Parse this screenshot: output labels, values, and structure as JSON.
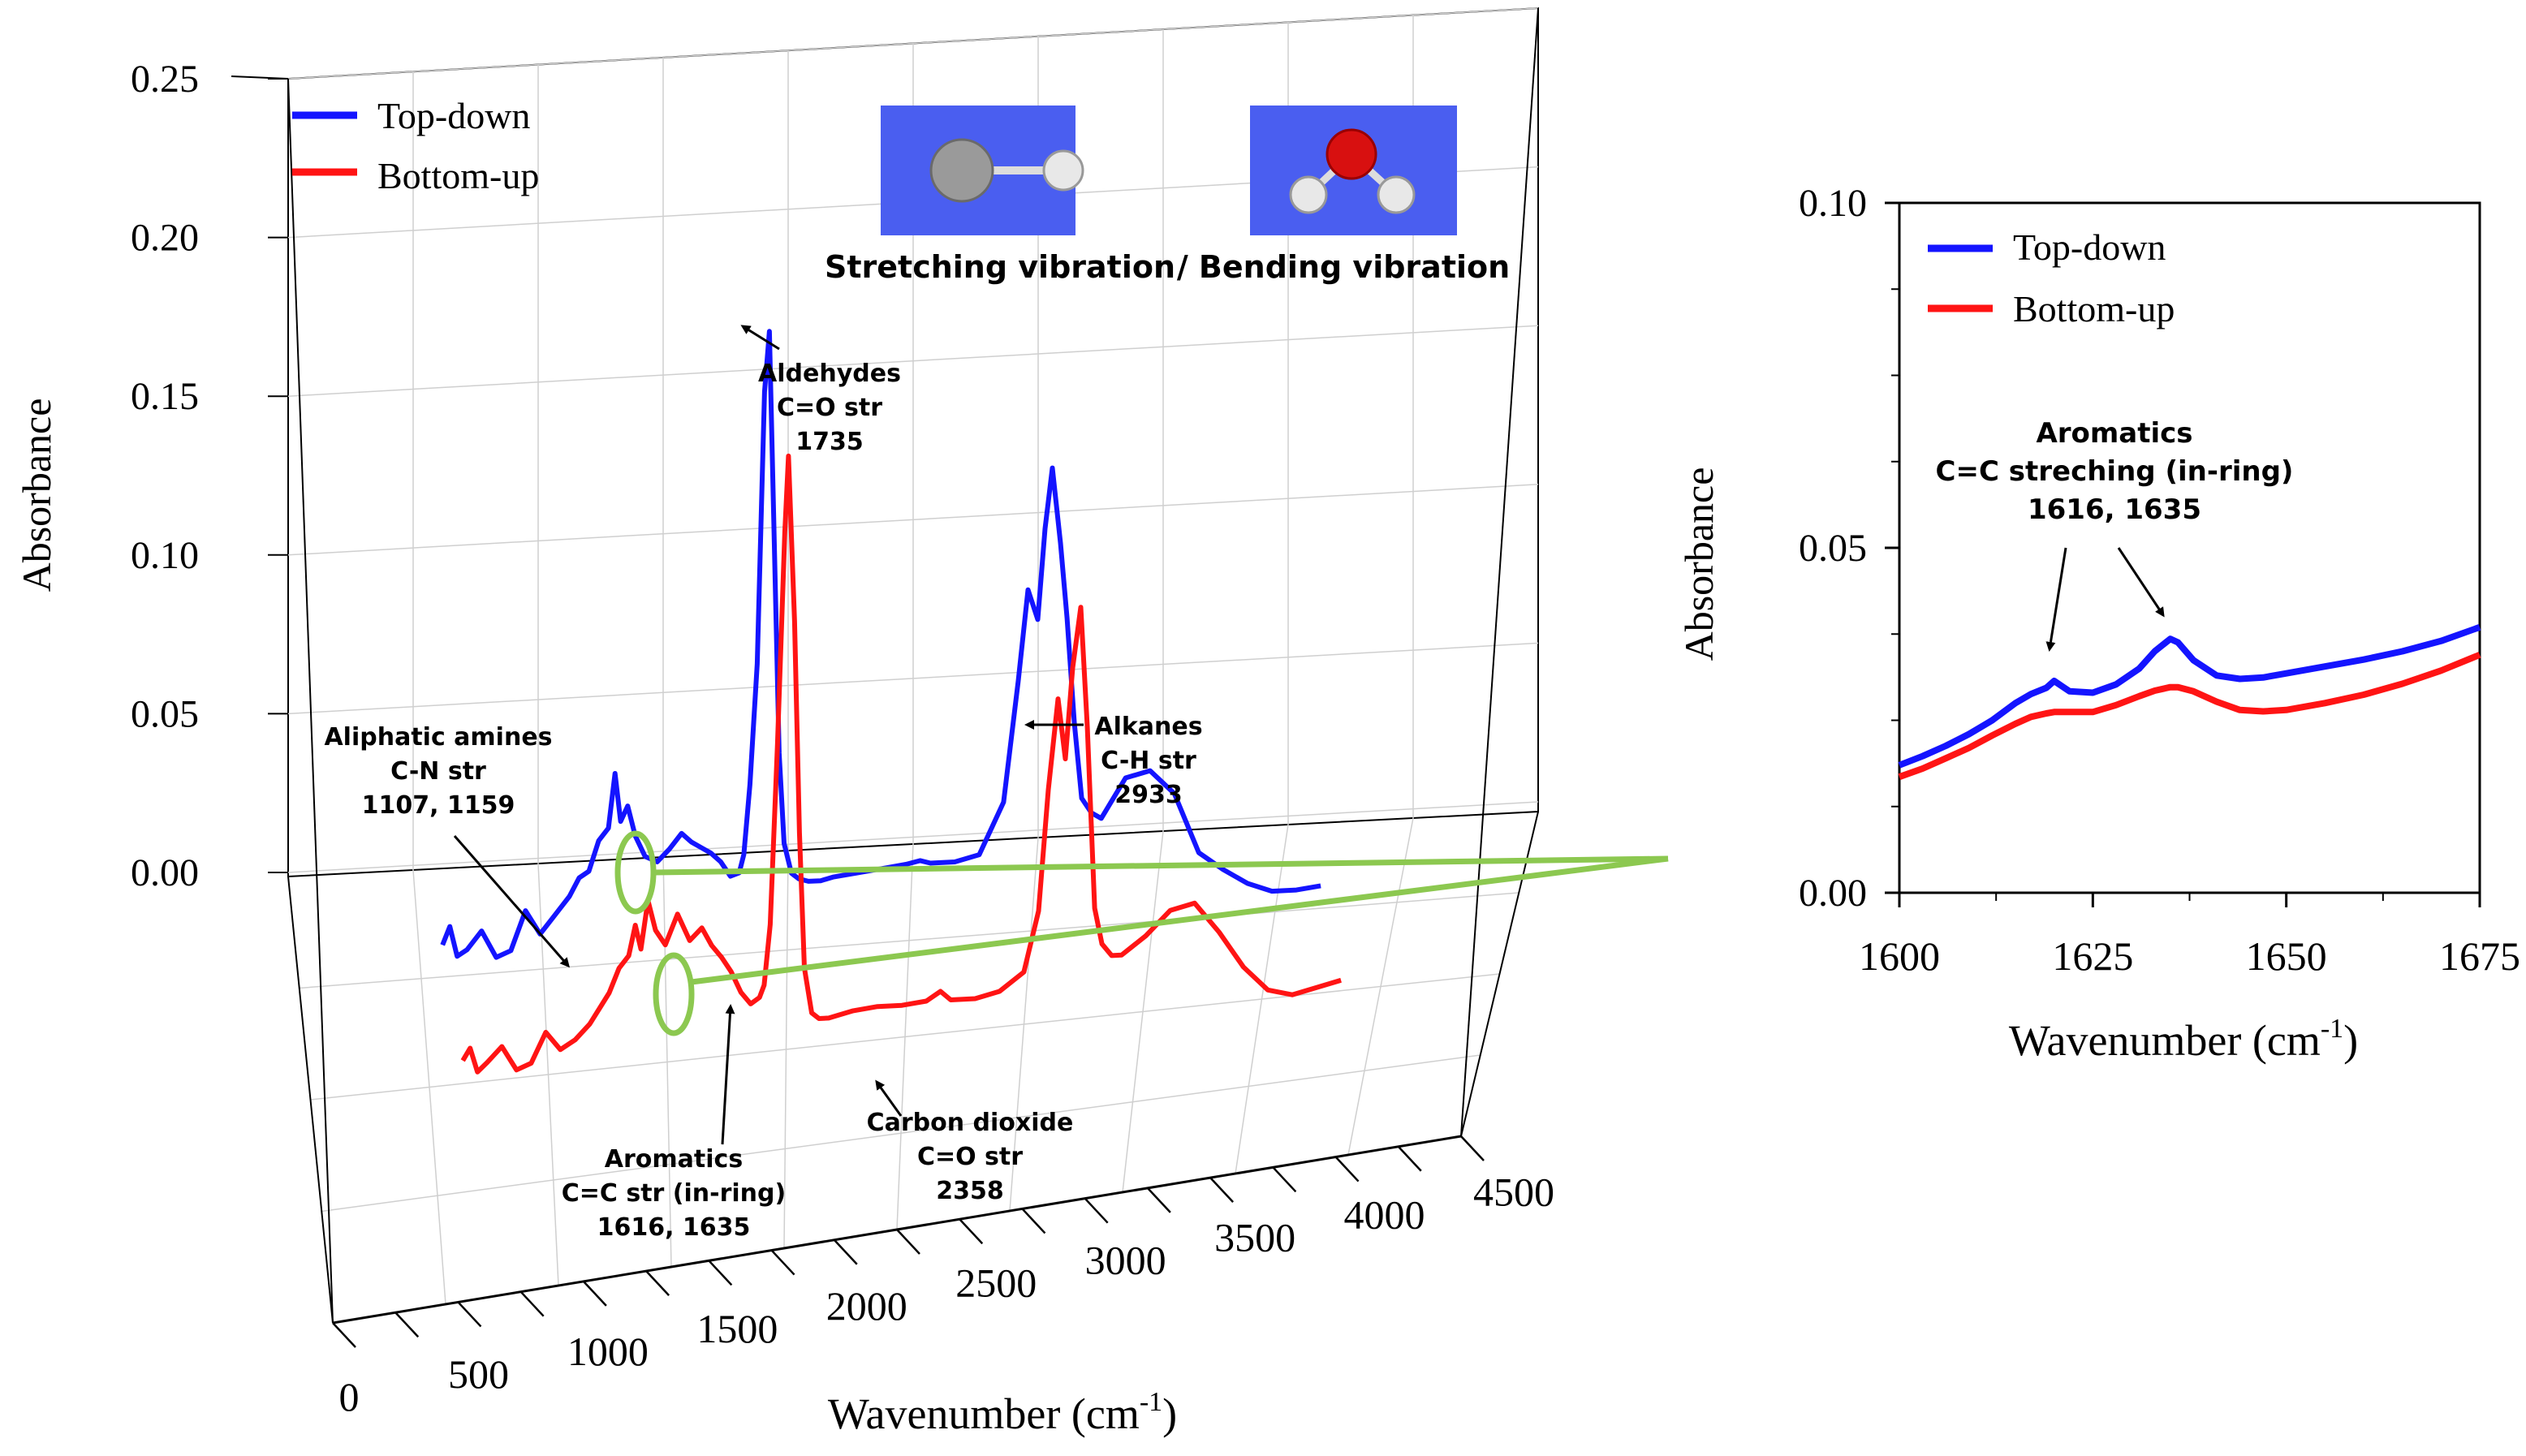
{
  "colors": {
    "top_down": "#1414ff",
    "bottom_up": "#ff1414",
    "zoom_guide": "#8cc850",
    "inset_bg": "#4a5ef0",
    "grid": "#c8c8c8",
    "axis": "#000000"
  },
  "inset_labels": {
    "stretching": "Stretching vibration",
    "bending": "/ Bending vibration"
  },
  "chart_data": [
    {
      "type": "line",
      "projection": "3d-waterfall",
      "xlabel": "Wavenumber (cm",
      "xlabel_sup": "-1",
      "xlabel_close": ")",
      "ylabel": "Absorbance",
      "xlim": [
        0,
        4500
      ],
      "ylim": [
        0.0,
        0.25
      ],
      "xticks": [
        "0",
        "500",
        "1000",
        "1500",
        "2000",
        "2500",
        "3000",
        "3500",
        "4000",
        "4500"
      ],
      "yticks": [
        "0.00",
        "0.05",
        "0.10",
        "0.15",
        "0.20",
        "0.25"
      ],
      "grid": true,
      "legend_position": "top-left",
      "series": [
        {
          "name": "Top-down",
          "color": "#1414ff",
          "x": [
            400,
            430,
            460,
            500,
            560,
            620,
            680,
            740,
            800,
            860,
            920,
            960,
            1000,
            1040,
            1080,
            1107,
            1130,
            1159,
            1190,
            1230,
            1280,
            1330,
            1380,
            1420,
            1460,
            1500,
            1540,
            1580,
            1616,
            1635,
            1660,
            1690,
            1720,
            1740,
            1760,
            1780,
            1800,
            1830,
            1860,
            1900,
            1950,
            2000,
            2100,
            2200,
            2300,
            2358,
            2400,
            2500,
            2600,
            2700,
            2760,
            2800,
            2840,
            2870,
            2900,
            2933,
            2960,
            2990,
            3020,
            3060,
            3100,
            3200,
            3300,
            3400,
            3500,
            3600,
            3700,
            3800,
            3900,
            4000
          ],
          "y": [
            0.012,
            0.018,
            0.008,
            0.01,
            0.016,
            0.007,
            0.009,
            0.022,
            0.014,
            0.02,
            0.026,
            0.032,
            0.034,
            0.044,
            0.048,
            0.066,
            0.05,
            0.055,
            0.045,
            0.038,
            0.036,
            0.04,
            0.045,
            0.042,
            0.04,
            0.038,
            0.035,
            0.03,
            0.031,
            0.037,
            0.06,
            0.1,
            0.19,
            0.21,
            0.14,
            0.07,
            0.04,
            0.03,
            0.028,
            0.027,
            0.027,
            0.028,
            0.029,
            0.03,
            0.031,
            0.032,
            0.031,
            0.031,
            0.033,
            0.05,
            0.09,
            0.12,
            0.11,
            0.14,
            0.16,
            0.135,
            0.11,
            0.075,
            0.05,
            0.045,
            0.043,
            0.056,
            0.058,
            0.05,
            0.03,
            0.024,
            0.019,
            0.016,
            0.016,
            0.017
          ]
        },
        {
          "name": "Bottom-up",
          "color": "#ff1414",
          "x": [
            400,
            430,
            460,
            500,
            560,
            620,
            680,
            740,
            800,
            860,
            920,
            960,
            1000,
            1040,
            1080,
            1107,
            1130,
            1159,
            1190,
            1230,
            1280,
            1330,
            1380,
            1420,
            1460,
            1500,
            1540,
            1580,
            1616,
            1635,
            1660,
            1690,
            1720,
            1735,
            1760,
            1780,
            1800,
            1830,
            1860,
            1900,
            1950,
            2000,
            2100,
            2200,
            2300,
            2358,
            2400,
            2500,
            2600,
            2700,
            2760,
            2800,
            2840,
            2870,
            2900,
            2933,
            2960,
            2990,
            3020,
            3060,
            3100,
            3200,
            3300,
            3400,
            3500,
            3600,
            3700,
            3800,
            3900,
            4000
          ],
          "y": [
            0.01,
            0.014,
            0.006,
            0.009,
            0.014,
            0.006,
            0.008,
            0.018,
            0.012,
            0.015,
            0.02,
            0.025,
            0.03,
            0.038,
            0.042,
            0.052,
            0.044,
            0.06,
            0.05,
            0.045,
            0.055,
            0.046,
            0.05,
            0.044,
            0.04,
            0.035,
            0.028,
            0.024,
            0.026,
            0.03,
            0.05,
            0.11,
            0.18,
            0.205,
            0.15,
            0.08,
            0.035,
            0.02,
            0.018,
            0.018,
            0.019,
            0.02,
            0.021,
            0.021,
            0.022,
            0.025,
            0.022,
            0.022,
            0.024,
            0.03,
            0.05,
            0.09,
            0.12,
            0.1,
            0.13,
            0.15,
            0.11,
            0.05,
            0.038,
            0.034,
            0.034,
            0.04,
            0.048,
            0.05,
            0.04,
            0.028,
            0.02,
            0.018,
            0.02,
            0.022
          ]
        }
      ],
      "annotations": [
        {
          "key": "aldehydes",
          "lines": [
            "Aldehydes",
            "C=O str",
            "1735"
          ]
        },
        {
          "key": "alkanes",
          "lines": [
            "Alkanes",
            "C-H str",
            "2933"
          ]
        },
        {
          "key": "amines",
          "lines": [
            "Aliphatic amines",
            "C-N str",
            "1107, 1159"
          ]
        },
        {
          "key": "aromatics",
          "lines": [
            "Aromatics",
            "C=C str (in-ring)",
            "1616, 1635"
          ]
        },
        {
          "key": "co2",
          "lines": [
            "Carbon dioxide",
            "C=O str",
            "2358"
          ]
        }
      ]
    },
    {
      "type": "line",
      "xlabel": "Wavenumber (cm",
      "xlabel_sup": "-1",
      "xlabel_close": ")",
      "ylabel": "Absorbance",
      "xlim": [
        1600,
        1675
      ],
      "ylim": [
        0.0,
        0.1
      ],
      "xticks": [
        "1600",
        "1625",
        "1650",
        "1675"
      ],
      "yticks": [
        "0.00",
        "0.05",
        "0.10"
      ],
      "grid": false,
      "legend_position": "top-left",
      "series": [
        {
          "name": "Top-down",
          "color": "#1414ff",
          "x": [
            1600,
            1603,
            1606,
            1609,
            1612,
            1615,
            1617,
            1619,
            1620,
            1622,
            1625,
            1628,
            1631,
            1633,
            1635,
            1636,
            1638,
            1641,
            1644,
            1647,
            1650,
            1655,
            1660,
            1665,
            1670,
            1675
          ],
          "y": [
            0.0185,
            0.0198,
            0.0213,
            0.023,
            0.025,
            0.0275,
            0.0288,
            0.0297,
            0.0307,
            0.0292,
            0.029,
            0.0302,
            0.0325,
            0.035,
            0.0368,
            0.0363,
            0.0337,
            0.0315,
            0.031,
            0.0312,
            0.0318,
            0.0328,
            0.0338,
            0.035,
            0.0365,
            0.0385
          ]
        },
        {
          "name": "Bottom-up",
          "color": "#ff1414",
          "x": [
            1600,
            1603,
            1606,
            1609,
            1612,
            1615,
            1617,
            1619,
            1620,
            1622,
            1625,
            1628,
            1631,
            1633,
            1635,
            1636,
            1638,
            1641,
            1644,
            1647,
            1650,
            1655,
            1660,
            1665,
            1670,
            1675
          ],
          "y": [
            0.0168,
            0.018,
            0.0195,
            0.021,
            0.0228,
            0.0245,
            0.0255,
            0.026,
            0.0262,
            0.0262,
            0.0262,
            0.0272,
            0.0285,
            0.0293,
            0.0298,
            0.0298,
            0.0292,
            0.0277,
            0.0265,
            0.0263,
            0.0265,
            0.0275,
            0.0287,
            0.0303,
            0.0322,
            0.0345
          ]
        }
      ],
      "annotations": [
        {
          "key": "aromatics_zoom",
          "lines": [
            "Aromatics",
            "C=C streching (in-ring)",
            "1616, 1635"
          ]
        }
      ]
    }
  ]
}
